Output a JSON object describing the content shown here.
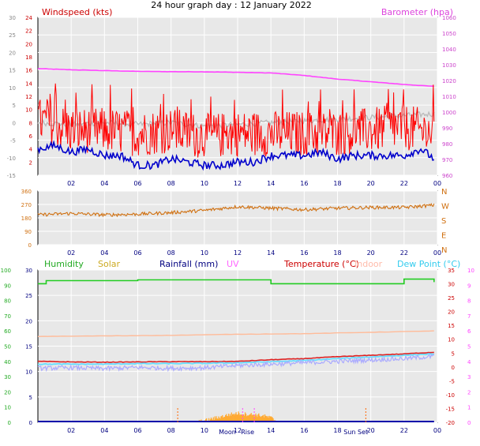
{
  "title": "24 hour graph day : 12 January 2022",
  "colors": {
    "wind_speed": "#ff0000",
    "wind_gust": "#ff0000",
    "wind_avg": "#0000cc",
    "barometer": "#ff44ff",
    "wind_chill": "#bbbbbb",
    "wind_dir": "#d07010",
    "humidity": "#22cc22",
    "solar": "#ffaa33",
    "rainfall": "#0000aa",
    "uv": "#ff66ff",
    "temperature": "#dd2222",
    "indoor": "#ffbb99",
    "dew_point": "#66ddff",
    "feels": "#aaaaff",
    "plot_bg": "#e8e8e8",
    "grid": "#ffffff"
  },
  "chart_data": [
    {
      "type": "line",
      "x_ticks": [
        "02",
        "04",
        "06",
        "08",
        "10",
        "12",
        "14",
        "16",
        "18",
        "20",
        "22",
        "00"
      ],
      "legend": {
        "left": "Windspeed (kts)",
        "right": "Barometer (hpa)"
      },
      "axes": {
        "left_outer": {
          "range": [
            -15,
            30
          ],
          "ticks": [
            "-15",
            "-10",
            "-5",
            "0",
            "5",
            "10",
            "15",
            "20",
            "25",
            "30"
          ]
        },
        "left_inner": {
          "range": [
            0,
            24
          ],
          "ticks": [
            "2",
            "4",
            "6",
            "8",
            "10",
            "12",
            "14",
            "16",
            "18",
            "20",
            "22",
            "24"
          ]
        },
        "right": {
          "range": [
            960,
            1060
          ],
          "ticks": [
            "960",
            "970",
            "980",
            "990",
            "1000",
            "1010",
            "1020",
            "1030",
            "1040",
            "1050",
            "1060"
          ]
        }
      },
      "series": [
        {
          "key": "barometer",
          "axis": "right",
          "x": [
            0,
            2,
            4,
            6,
            8,
            10,
            12,
            14,
            16,
            18,
            20,
            22,
            23.8
          ],
          "y": [
            1027.5,
            1026.8,
            1026.3,
            1025.8,
            1025.6,
            1025.5,
            1025.2,
            1024.8,
            1023.2,
            1020.9,
            1019.2,
            1017.5,
            1016.3
          ]
        },
        {
          "key": "wind_chill",
          "axis": "left_outer",
          "x": [
            0,
            2,
            4,
            6,
            8,
            10,
            12,
            14,
            16,
            18,
            20,
            22,
            23.8
          ],
          "y": [
            0,
            -0.5,
            0,
            -0.5,
            0,
            -1,
            -0.5,
            0,
            0.5,
            1,
            1.5,
            2,
            2.5
          ]
        },
        {
          "key": "wind_gust",
          "axis": "left_inner",
          "x": [
            0,
            2,
            4,
            6,
            8,
            10,
            12,
            14,
            16,
            18,
            20,
            22,
            23.8
          ],
          "y": [
            8,
            6.5,
            6.5,
            6,
            6.5,
            5.5,
            6,
            6,
            6,
            6,
            6.5,
            7,
            6
          ]
        },
        {
          "key": "wind_avg",
          "axis": "left_inner",
          "x": [
            0,
            1,
            2,
            3,
            4,
            5,
            6,
            7,
            8,
            9,
            10,
            11,
            12,
            13,
            14,
            15,
            16,
            17,
            18,
            19,
            20,
            21,
            22,
            23,
            23.8
          ],
          "y": [
            4,
            4.5,
            3.5,
            4,
            3,
            3,
            1.5,
            1.5,
            2.5,
            2,
            1.5,
            1.5,
            2,
            2,
            3,
            3,
            3,
            3.5,
            2.5,
            3,
            3,
            3,
            3,
            4,
            2.5
          ]
        }
      ]
    },
    {
      "type": "line",
      "x_ticks": [
        "02",
        "04",
        "06",
        "08",
        "10",
        "12",
        "14",
        "16",
        "18",
        "20",
        "22",
        "00"
      ],
      "axes": {
        "left": {
          "range": [
            0,
            360
          ],
          "ticks": [
            "0",
            "90",
            "180",
            "270",
            "360"
          ]
        },
        "right_labels": [
          "N",
          "W",
          "S",
          "E",
          "N"
        ]
      },
      "series": [
        {
          "key": "wind_dir",
          "x": [
            0,
            2,
            4,
            6,
            8,
            10,
            12,
            14,
            16,
            18,
            20,
            22,
            23.8
          ],
          "y": [
            200,
            210,
            200,
            205,
            215,
            230,
            255,
            245,
            235,
            245,
            250,
            250,
            265
          ]
        }
      ]
    },
    {
      "type": "line",
      "x_ticks": [
        "02",
        "04",
        "06",
        "08",
        "10",
        "12",
        "14",
        "16",
        "18",
        "20",
        "22",
        "00"
      ],
      "legend": [
        "Humidity",
        "Solar",
        "Rainfall (mm)",
        "UV",
        "Temperature (°C)",
        "Indoor",
        "Dew Point (°C)"
      ],
      "axes": {
        "left_outer": {
          "range": [
            0,
            100
          ],
          "ticks": [
            "0",
            "10",
            "20",
            "30",
            "40",
            "50",
            "60",
            "70",
            "80",
            "90",
            "100"
          ]
        },
        "left_inner": {
          "range": [
            0,
            30
          ],
          "ticks": [
            "0",
            "5",
            "10",
            "15",
            "20",
            "25",
            "30"
          ]
        },
        "right_inner": {
          "range": [
            -20,
            35
          ],
          "ticks": [
            "-20",
            "-15",
            "-10",
            "-5",
            "0",
            "5",
            "10",
            "15",
            "20",
            "25",
            "30",
            "35"
          ]
        },
        "right_outer": {
          "range": [
            0,
            10
          ],
          "ticks": [
            "0",
            "1",
            "2",
            "3",
            "4",
            "5",
            "6",
            "7",
            "8",
            "9",
            "10"
          ]
        }
      },
      "annotations": [
        "Moon",
        "Rise",
        "Sun Set"
      ],
      "series": [
        {
          "key": "humidity",
          "axis": "left_outer",
          "x": [
            0,
            0.5,
            2,
            4,
            6,
            8,
            10,
            12,
            14,
            16,
            18,
            20,
            21.8,
            22,
            23.8
          ],
          "y": [
            91,
            93,
            93,
            93,
            93.5,
            93.5,
            93.5,
            93.5,
            91,
            91,
            91,
            91,
            91,
            94,
            92
          ]
        },
        {
          "key": "indoor",
          "axis": "right_inner",
          "x": [
            0,
            4,
            8,
            12,
            16,
            20,
            23.8
          ],
          "y": [
            11,
            11.2,
            11.4,
            11.8,
            12,
            12.5,
            13
          ]
        },
        {
          "key": "temperature",
          "axis": "right_inner",
          "x": [
            0,
            2,
            4,
            6,
            8,
            10,
            12,
            14,
            16,
            18,
            20,
            22,
            23.8
          ],
          "y": [
            2,
            1.8,
            1.7,
            1.8,
            1.9,
            1.9,
            2,
            2.6,
            3,
            3.7,
            4.2,
            4.7,
            5.3
          ]
        },
        {
          "key": "dew_point",
          "axis": "right_inner",
          "x": [
            0,
            2,
            4,
            6,
            8,
            10,
            12,
            14,
            16,
            18,
            20,
            22,
            23.8
          ],
          "y": [
            1,
            1,
            1,
            1.2,
            1.2,
            1.3,
            1.5,
            1.9,
            2.3,
            3,
            3.6,
            4.2,
            4.7
          ]
        },
        {
          "key": "feels",
          "axis": "right_inner",
          "x": [
            0,
            2,
            4,
            6,
            8,
            10,
            12,
            14,
            16,
            18,
            20,
            22,
            23.8
          ],
          "y": [
            -0.5,
            -0.3,
            -0.6,
            -0.2,
            -0.5,
            -0.3,
            0.5,
            1,
            1.5,
            2,
            2.5,
            3,
            3.8
          ]
        },
        {
          "key": "solar",
          "axis": "left_inner",
          "x": [
            9.5,
            10,
            10.5,
            11,
            11.5,
            12,
            12.5,
            13,
            13.5,
            14,
            14.5
          ],
          "y": [
            0,
            0.3,
            0.7,
            1.1,
            1.5,
            1.8,
            1.6,
            1.5,
            1.3,
            0.9,
            0
          ]
        },
        {
          "key": "rainfall",
          "axis": "left_inner",
          "x": [
            0,
            23.8
          ],
          "y": [
            0,
            0
          ]
        }
      ]
    }
  ]
}
